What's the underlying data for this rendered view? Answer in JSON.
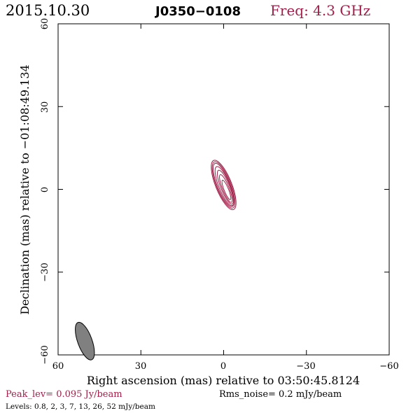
{
  "header": {
    "date": "2015.10.30",
    "source": "J0350−0108",
    "freq": "Freq: 4.3 GHz"
  },
  "footer": {
    "peak": "Peak_lev=  0.095 Jy/beam",
    "rms": "Rms_noise=  0.2 mJy/beam",
    "levels": "Levels: 0.8,   2,   3,   7,  13,  26,  52 mJy/beam"
  },
  "colors": {
    "contour": "#a0204a",
    "beam_fill": "#808080",
    "frame": "#000000",
    "freq_text": "#a0204a",
    "peak_text": "#a0204a"
  },
  "chart_data": {
    "type": "contour",
    "xlabel": "Right ascension (mas) relative to 03:50:45.8124",
    "ylabel": "Declination (mas) relative to −01:08:49.134",
    "xlim": [
      60,
      -60
    ],
    "ylim": [
      -60,
      60
    ],
    "x_ticks": [
      60,
      30,
      0,
      -30,
      -60
    ],
    "y_ticks": [
      -60,
      -30,
      0,
      30,
      60
    ],
    "x_tick_labels": [
      "60",
      "30",
      "0",
      "−30",
      "−60"
    ],
    "y_tick_labels": [
      "−60",
      "−30",
      "0",
      "30",
      "60"
    ],
    "contour_levels_mJy": [
      0.8,
      2,
      3,
      7,
      13,
      26,
      52
    ],
    "peak_Jy_per_beam": 0.095,
    "rms_noise_mJy_per_beam": 0.2,
    "contours": [
      {
        "level": 0.8,
        "center": [
          0.0,
          1.6
        ],
        "semi_major": 9.6,
        "semi_minor": 2.9,
        "pa_deg": -22
      },
      {
        "level": 2,
        "center": [
          0.0,
          1.6
        ],
        "semi_major": 9.0,
        "semi_minor": 2.6,
        "pa_deg": -22
      },
      {
        "level": 3,
        "center": [
          0.0,
          1.6
        ],
        "semi_major": 8.4,
        "semi_minor": 2.3,
        "pa_deg": -22
      },
      {
        "level": 7,
        "center": [
          -0.3,
          1.2
        ],
        "semi_major": 7.6,
        "semi_minor": 2.0,
        "pa_deg": -22
      },
      {
        "level": 13,
        "center": [
          -0.6,
          0.8
        ],
        "semi_major": 6.6,
        "semi_minor": 1.6,
        "pa_deg": -22
      },
      {
        "level": 26,
        "center": [
          -0.8,
          0.3
        ],
        "semi_major": 5.4,
        "semi_minor": 1.2,
        "pa_deg": -22
      },
      {
        "level": 52,
        "center": [
          -1.0,
          -0.2
        ],
        "semi_major": 3.8,
        "semi_minor": 0.8,
        "pa_deg": -22
      }
    ],
    "beam": {
      "center": [
        50.3,
        -55.0
      ],
      "major": 7.2,
      "minor": 2.6,
      "pa_deg": -20
    }
  }
}
